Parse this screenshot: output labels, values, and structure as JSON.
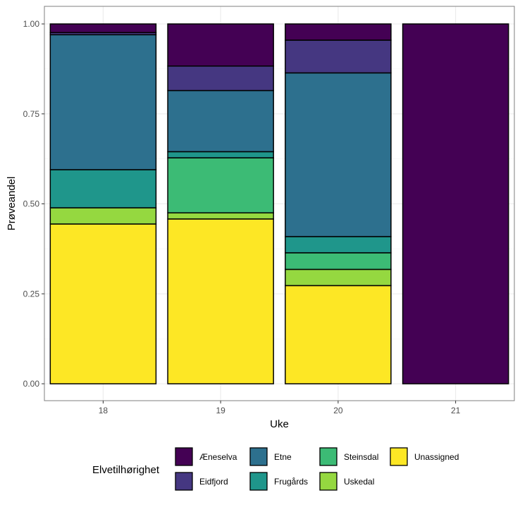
{
  "chart_data": {
    "type": "bar",
    "stacked": true,
    "title": "",
    "xlabel": "Uke",
    "ylabel": "Prøveandel",
    "ylim": [
      0,
      1
    ],
    "yticks": [
      "0.00",
      "0.25",
      "0.50",
      "0.75",
      "1.00"
    ],
    "ytick_values": [
      0,
      0.25,
      0.5,
      0.75,
      1
    ],
    "grid": true,
    "categories": [
      "18",
      "19",
      "20",
      "21"
    ],
    "series": [
      {
        "name": "Unassigned",
        "color": "#FDE725",
        "values": [
          0.444,
          0.458,
          0.273,
          0
        ]
      },
      {
        "name": "Uskedal",
        "color": "#95D840",
        "values": [
          0.045,
          0.017,
          0.045,
          0
        ]
      },
      {
        "name": "Steinsdal",
        "color": "#3CBB75",
        "values": [
          0,
          0.153,
          0.046,
          0
        ]
      },
      {
        "name": "Frugårds",
        "color": "#1F968B",
        "values": [
          0.106,
          0.017,
          0.045,
          0
        ]
      },
      {
        "name": "Etne",
        "color": "#2D708E",
        "values": [
          0.375,
          0.17,
          0.455,
          0
        ]
      },
      {
        "name": "Eidfjord",
        "color": "#453781",
        "values": [
          0.006,
          0.068,
          0.091,
          0
        ]
      },
      {
        "name": "Æneselva",
        "color": "#440154",
        "values": [
          0.024,
          0.117,
          0.045,
          1
        ]
      }
    ],
    "legend": {
      "title": "Elvetilhørighet",
      "position": "bottom",
      "order": [
        "Æneselva",
        "Eidfjord",
        "Etne",
        "Frugårds",
        "Steinsdal",
        "Uskedal",
        "Unassigned"
      ]
    }
  }
}
